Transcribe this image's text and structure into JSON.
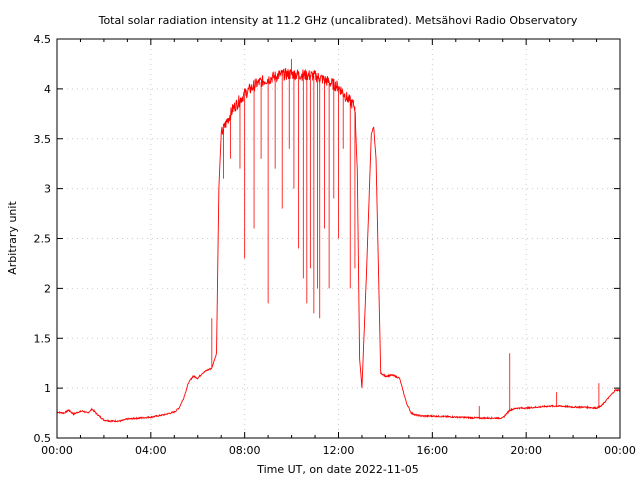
{
  "chart_data": {
    "type": "line",
    "title": "Total solar radiation intensity at 11.2 GHz (uncalibrated). Metsähovi Radio Observatory",
    "xlabel": "Time UT, on date 2022-11-05",
    "ylabel": "Arbitrary unit",
    "xlim": [
      0,
      24
    ],
    "ylim": [
      0.5,
      4.5
    ],
    "grid": true,
    "x_ticks": [
      0,
      4,
      8,
      12,
      16,
      20,
      24
    ],
    "x_tick_labels": [
      "00:00",
      "04:00",
      "08:00",
      "12:00",
      "16:00",
      "20:00",
      "00:00"
    ],
    "y_ticks": [
      0.5,
      1,
      1.5,
      2,
      2.5,
      3,
      3.5,
      4,
      4.5
    ],
    "y_tick_labels": [
      "0.5",
      "1",
      "1.5",
      "2",
      "2.5",
      "3",
      "3.5",
      "4",
      "4.5"
    ],
    "series": [
      {
        "color": "#ff0000",
        "x_unit": "hours UT",
        "x": [
          0.0,
          0.3,
          0.5,
          0.7,
          0.9,
          1.1,
          1.3,
          1.5,
          1.7,
          2.0,
          2.3,
          2.7,
          3.0,
          3.5,
          4.0,
          4.5,
          5.0,
          5.2,
          5.4,
          5.6,
          5.8,
          6.0,
          6.2,
          6.4,
          6.6,
          6.8,
          6.9,
          7.0,
          7.2,
          7.5,
          8.0,
          8.5,
          9.0,
          9.5,
          10.0,
          10.5,
          11.0,
          11.5,
          12.0,
          12.4,
          12.7,
          12.8,
          12.9,
          13.0,
          13.2,
          13.4,
          13.5,
          13.6,
          13.8,
          14.0,
          14.3,
          14.6,
          14.9,
          15.1,
          15.3,
          15.6,
          16.0,
          17.0,
          18.0,
          18.5,
          19.0,
          19.3,
          19.6,
          20.0,
          20.5,
          21.0,
          21.5,
          22.0,
          22.5,
          23.0,
          23.2,
          23.5,
          23.8,
          24.0
        ],
        "y": [
          0.76,
          0.75,
          0.78,
          0.74,
          0.76,
          0.77,
          0.75,
          0.79,
          0.74,
          0.68,
          0.67,
          0.67,
          0.69,
          0.7,
          0.71,
          0.73,
          0.76,
          0.8,
          0.9,
          1.05,
          1.12,
          1.1,
          1.15,
          1.18,
          1.2,
          1.35,
          3.0,
          3.55,
          3.65,
          3.8,
          3.95,
          4.05,
          4.1,
          4.14,
          4.15,
          4.14,
          4.13,
          4.08,
          4.02,
          3.9,
          3.82,
          3.2,
          1.3,
          1.0,
          2.2,
          3.55,
          3.62,
          3.3,
          1.15,
          1.12,
          1.13,
          1.1,
          0.85,
          0.75,
          0.73,
          0.72,
          0.72,
          0.71,
          0.7,
          0.7,
          0.7,
          0.78,
          0.8,
          0.8,
          0.81,
          0.82,
          0.82,
          0.81,
          0.81,
          0.8,
          0.82,
          0.9,
          0.98,
          0.98
        ],
        "spikes": [
          {
            "x": 7.1,
            "y": 3.1
          },
          {
            "x": 7.4,
            "y": 3.3
          },
          {
            "x": 7.8,
            "y": 3.2
          },
          {
            "x": 8.0,
            "y": 2.3
          },
          {
            "x": 8.4,
            "y": 2.6
          },
          {
            "x": 8.7,
            "y": 3.3
          },
          {
            "x": 9.0,
            "y": 1.85
          },
          {
            "x": 9.3,
            "y": 3.2
          },
          {
            "x": 9.6,
            "y": 2.8
          },
          {
            "x": 9.9,
            "y": 3.4
          },
          {
            "x": 10.1,
            "y": 3.0
          },
          {
            "x": 10.3,
            "y": 2.4
          },
          {
            "x": 10.5,
            "y": 2.1
          },
          {
            "x": 10.65,
            "y": 1.85
          },
          {
            "x": 10.8,
            "y": 2.2
          },
          {
            "x": 10.95,
            "y": 1.75
          },
          {
            "x": 11.1,
            "y": 2.0
          },
          {
            "x": 11.2,
            "y": 1.7
          },
          {
            "x": 11.4,
            "y": 2.6
          },
          {
            "x": 11.6,
            "y": 2.0
          },
          {
            "x": 11.8,
            "y": 2.9
          },
          {
            "x": 12.0,
            "y": 2.5
          },
          {
            "x": 12.2,
            "y": 3.4
          },
          {
            "x": 12.5,
            "y": 2.0
          },
          {
            "x": 12.7,
            "y": 2.2
          }
        ],
        "peaks": [
          {
            "x": 10.0,
            "y": 4.3
          },
          {
            "x": 6.6,
            "y": 1.7
          },
          {
            "x": 19.3,
            "y": 1.35
          },
          {
            "x": 21.3,
            "y": 0.96
          },
          {
            "x": 23.1,
            "y": 1.05
          },
          {
            "x": 18.0,
            "y": 0.82
          }
        ]
      }
    ]
  }
}
